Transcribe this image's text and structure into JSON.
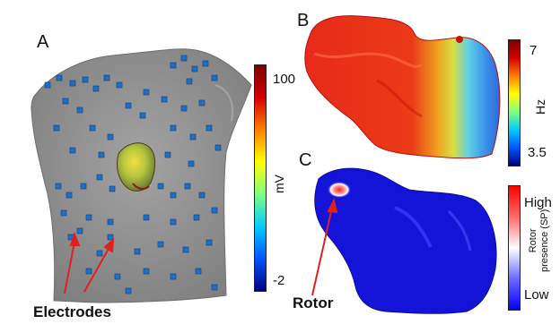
{
  "panels": {
    "a": {
      "letter": "A",
      "callout": "Electrodes",
      "colorbar": {
        "unit": "mV",
        "max_label": "100",
        "min_label": "-2",
        "colors": [
          "#00007f",
          "#0055ff",
          "#00ccff",
          "#80ff80",
          "#ffff00",
          "#ff8000",
          "#d40000",
          "#7f0000"
        ]
      }
    },
    "b": {
      "letter": "B",
      "colorbar": {
        "unit": "Hz",
        "max_label": "7",
        "min_label": "3.5",
        "colors": [
          "#00007f",
          "#0055ff",
          "#00ccff",
          "#80ff80",
          "#ffff00",
          "#ff8000",
          "#d40000",
          "#7f0000"
        ]
      }
    },
    "c": {
      "letter": "C",
      "callout": "Rotor",
      "colorbar": {
        "unit_line1": "Rotor",
        "unit_line2": "presence (SP)",
        "max_label": "High",
        "min_label": "Low",
        "colors": [
          "#0000ff",
          "#6a6aff",
          "#ffffff",
          "#ff6a6a",
          "#ff0000"
        ]
      }
    }
  }
}
